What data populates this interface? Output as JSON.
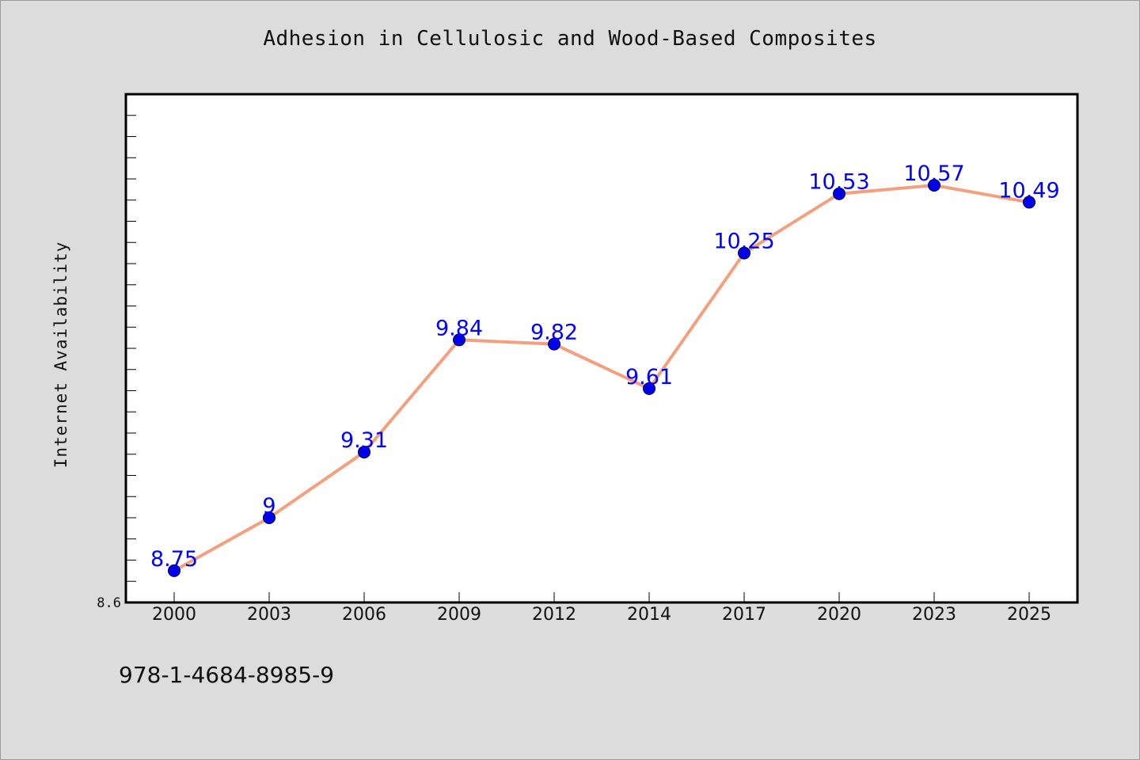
{
  "chart_data": {
    "type": "line",
    "title": "Adhesion in Cellulosic and Wood-Based Composites",
    "xlabel": "",
    "ylabel": "Internet Availability",
    "categories": [
      "2000",
      "2003",
      "2006",
      "2009",
      "2012",
      "2014",
      "2017",
      "2020",
      "2023",
      "2025"
    ],
    "series": [
      {
        "values": [
          8.75,
          9,
          9.31,
          9.84,
          9.82,
          9.61,
          10.25,
          10.53,
          10.57,
          10.49
        ]
      }
    ],
    "ylim": [
      8.6,
      11.0
    ],
    "yticks_labeled": [
      "8.6"
    ],
    "grid": false,
    "legend": "none",
    "colors": {
      "line": "#f4a07e",
      "marker": "#0000ee",
      "data_label": "#0000ff",
      "plot_bg": "#ffffff",
      "page_bg": "#dcdcdc"
    }
  },
  "footer": {
    "isbn": "978-1-4684-8985-9"
  }
}
